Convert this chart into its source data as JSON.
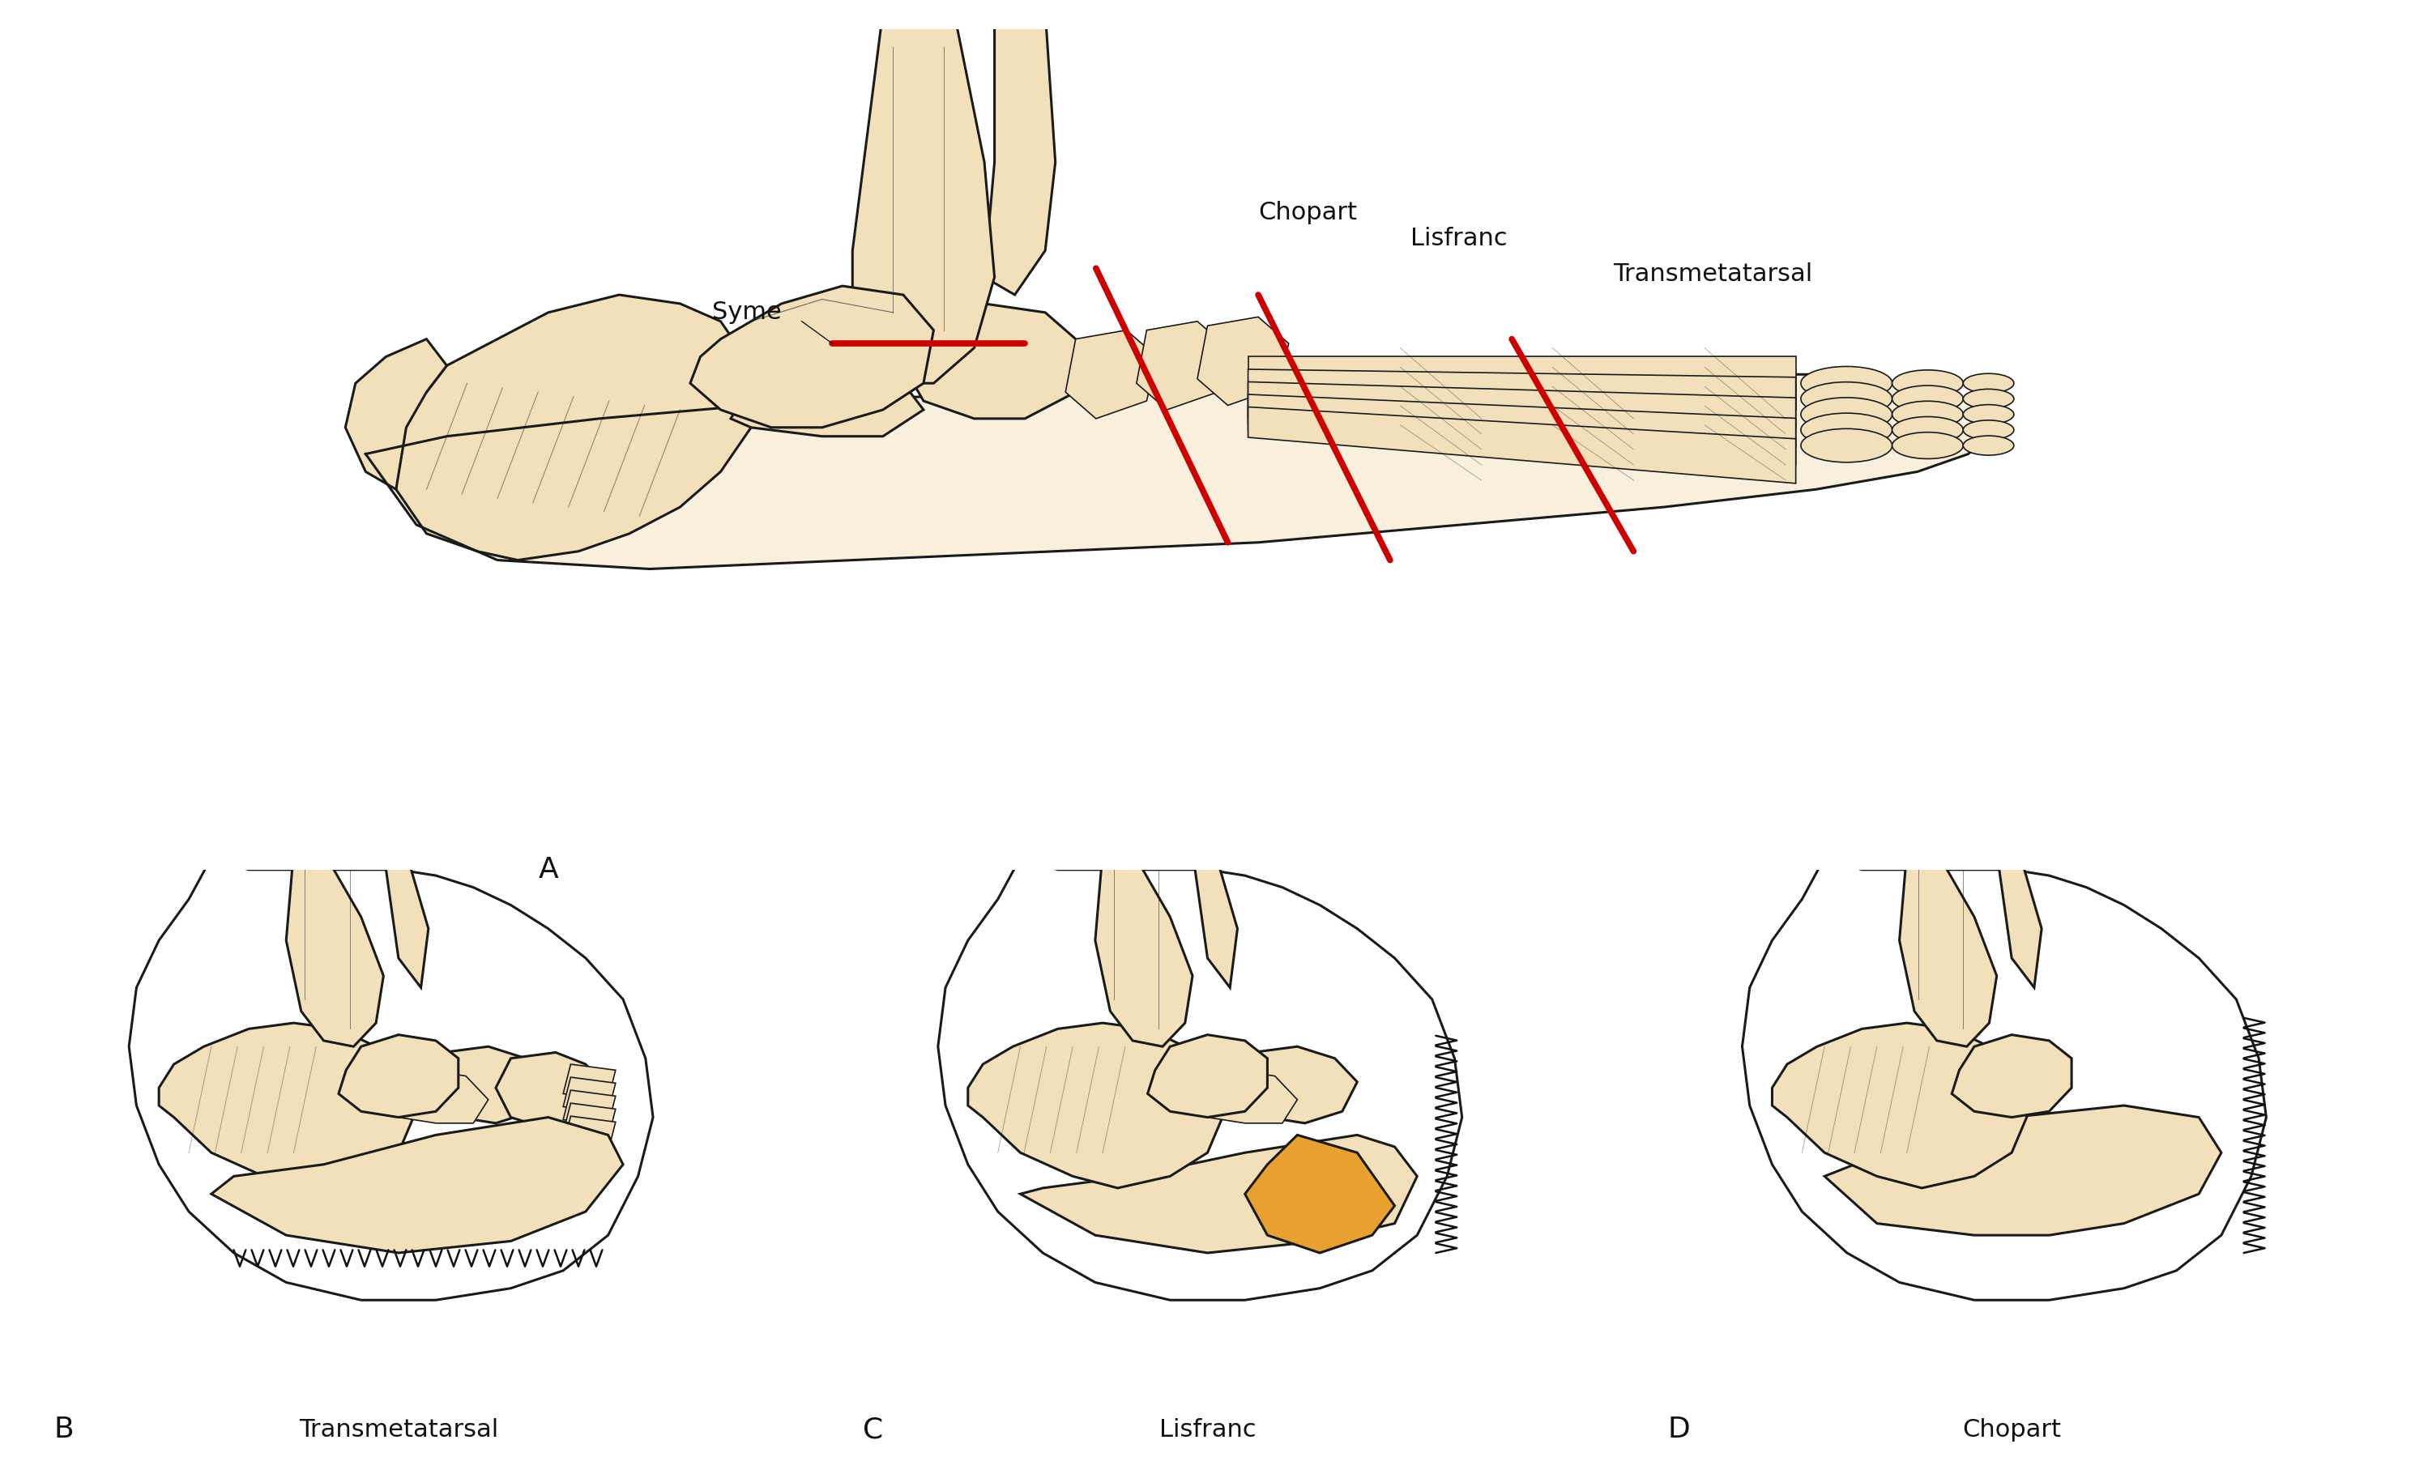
{
  "bg_color": "#ffffff",
  "bone_fill": "#f2e0bb",
  "bone_outline": "#1a1a1a",
  "red_color": "#cc0000",
  "text_color": "#111111",
  "highlight_orange": "#e8a030",
  "suture_color": "#111111",
  "lw_main": 2.2,
  "lw_detail": 1.2,
  "lw_red": 5.5,
  "label_fs": 22,
  "panel_fs": 26,
  "syme_label": "Syme",
  "chopart_label": "Chopart",
  "lisfranc_label": "Lisfranc",
  "transmetatarsal_label": "Transmetatarsal",
  "A_label": "A",
  "B_label": "B",
  "C_label": "C",
  "D_label": "D",
  "B_name": "Transmetatarsal",
  "C_name": "Lisfranc",
  "D_name": "Chopart"
}
